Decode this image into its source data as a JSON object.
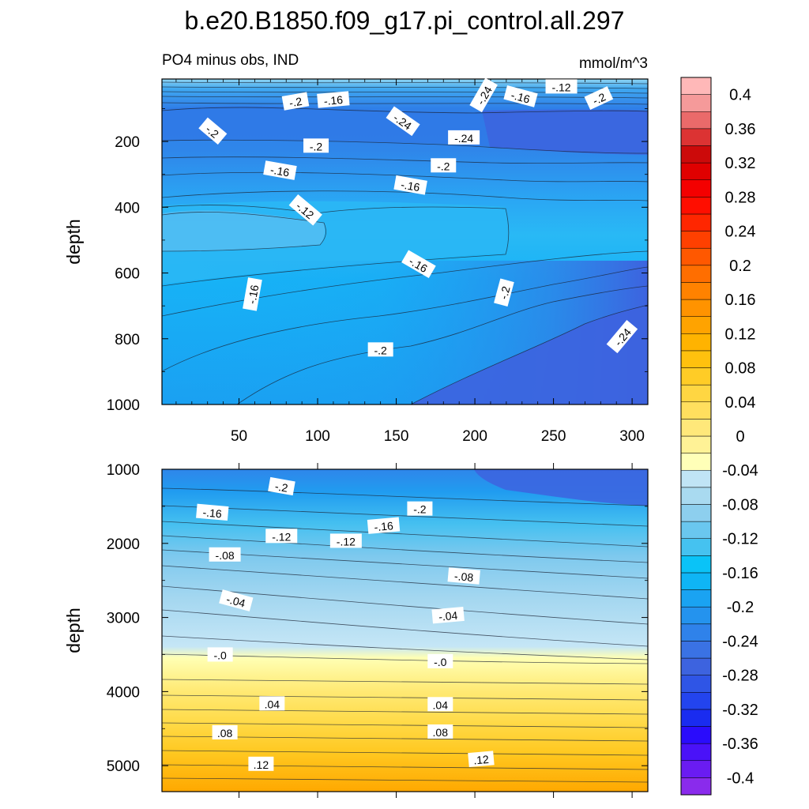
{
  "chart_data": {
    "type": "heatmap",
    "title": "b.e20.B1850.f09_g17.pi_control.all.297",
    "subtitle_left": "PO4 minus obs, IND",
    "subtitle_right": "mmol/m^3",
    "panels": [
      {
        "name": "upper",
        "ylabel": "depth",
        "xlim": [
          1,
          310
        ],
        "ylim": [
          10,
          1000
        ],
        "xticks": [
          "50",
          "100",
          "150",
          "200",
          "250",
          "300"
        ],
        "yticks": [
          "200",
          "400",
          "600",
          "800",
          "1000"
        ],
        "contour_labels": [
          {
            "text": "-.2",
            "x": 86,
            "y": 80,
            "rot": -10
          },
          {
            "text": "-.16",
            "x": 110,
            "y": 75,
            "rot": -5
          },
          {
            "text": "-.24",
            "x": 154,
            "y": 140,
            "rot": 35
          },
          {
            "text": "-.24",
            "x": 206,
            "y": 60,
            "rot": -60
          },
          {
            "text": "-.16",
            "x": 229,
            "y": 65,
            "rot": 15
          },
          {
            "text": "-.12",
            "x": 255,
            "y": 35,
            "rot": 0
          },
          {
            "text": "-.2",
            "x": 279,
            "y": 70,
            "rot": -25
          },
          {
            "text": "-.2",
            "x": 33,
            "y": 170,
            "rot": 40
          },
          {
            "text": "-.2",
            "x": 99,
            "y": 215,
            "rot": 0
          },
          {
            "text": "-.24",
            "x": 193,
            "y": 190,
            "rot": 0
          },
          {
            "text": "-.16",
            "x": 76,
            "y": 290,
            "rot": 10
          },
          {
            "text": "-.2",
            "x": 180,
            "y": 275,
            "rot": 0
          },
          {
            "text": "-.16",
            "x": 159,
            "y": 335,
            "rot": 10
          },
          {
            "text": "-.12",
            "x": 92,
            "y": 410,
            "rot": 40
          },
          {
            "text": "-.16",
            "x": 164,
            "y": 575,
            "rot": 30
          },
          {
            "text": "-.16",
            "x": 59,
            "y": 665,
            "rot": -80
          },
          {
            "text": "-.2",
            "x": 219,
            "y": 660,
            "rot": -75
          },
          {
            "text": "-.2",
            "x": 140,
            "y": 835,
            "rot": 0
          },
          {
            "text": "-.24",
            "x": 294,
            "y": 795,
            "rot": -50
          }
        ]
      },
      {
        "name": "lower",
        "ylabel": "depth",
        "ylim": [
          1000,
          5350
        ],
        "yticks": [
          "1000",
          "2000",
          "3000",
          "4000",
          "5000"
        ],
        "contour_labels": [
          {
            "text": "-.2",
            "x": 77,
            "y": 1240,
            "rot": 10
          },
          {
            "text": "-.2",
            "x": 165,
            "y": 1540,
            "rot": 0
          },
          {
            "text": "-.16",
            "x": 33,
            "y": 1590,
            "rot": 5
          },
          {
            "text": "-.16",
            "x": 142,
            "y": 1770,
            "rot": -5
          },
          {
            "text": "-.12",
            "x": 77,
            "y": 1910,
            "rot": 0
          },
          {
            "text": "-.12",
            "x": 118,
            "y": 1975,
            "rot": 0
          },
          {
            "text": "-.08",
            "x": 41,
            "y": 2160,
            "rot": 0
          },
          {
            "text": "-.08",
            "x": 193,
            "y": 2450,
            "rot": 5
          },
          {
            "text": "-.04",
            "x": 48,
            "y": 2780,
            "rot": 15
          },
          {
            "text": "-.04",
            "x": 183,
            "y": 2980,
            "rot": -5
          },
          {
            "text": "-.0",
            "x": 38,
            "y": 3510,
            "rot": 0
          },
          {
            "text": "-.0",
            "x": 178,
            "y": 3600,
            "rot": 0
          },
          {
            "text": ".04",
            "x": 71,
            "y": 4170,
            "rot": 0
          },
          {
            "text": ".04",
            "x": 178,
            "y": 4180,
            "rot": 0
          },
          {
            "text": ".08",
            "x": 41,
            "y": 4560,
            "rot": 0
          },
          {
            "text": ".08",
            "x": 178,
            "y": 4550,
            "rot": 0
          },
          {
            "text": ".12",
            "x": 64,
            "y": 4985,
            "rot": 0
          },
          {
            "text": ".12",
            "x": 204,
            "y": 4920,
            "rot": -5
          }
        ]
      }
    ],
    "colorbar": {
      "levels": [
        -0.42,
        -0.4,
        -0.38,
        -0.36,
        -0.34,
        -0.32,
        -0.3,
        -0.28,
        -0.26,
        -0.24,
        -0.22,
        -0.2,
        -0.18,
        -0.16,
        -0.14,
        -0.12,
        -0.1,
        -0.08,
        -0.06,
        -0.04,
        -0.02,
        0,
        0.02,
        0.04,
        0.06,
        0.08,
        0.1,
        0.12,
        0.14,
        0.16,
        0.18,
        0.2,
        0.22,
        0.24,
        0.26,
        0.28,
        0.3,
        0.32,
        0.34,
        0.36,
        0.38,
        0.4,
        0.42
      ],
      "tick_labels": [
        "-0.4",
        "-0.36",
        "-0.32",
        "-0.28",
        "-0.24",
        "-0.2",
        "-0.16",
        "-0.12",
        "-0.08",
        "-0.04",
        "0",
        "0.04",
        "0.08",
        "0.12",
        "0.16",
        "0.2",
        "0.24",
        "0.28",
        "0.32",
        "0.36",
        "0.4"
      ],
      "tick_values": [
        -0.4,
        -0.36,
        -0.32,
        -0.28,
        -0.24,
        -0.2,
        -0.16,
        -0.12,
        -0.08,
        -0.04,
        0,
        0.04,
        0.08,
        0.12,
        0.16,
        0.2,
        0.24,
        0.28,
        0.32,
        0.36,
        0.4
      ],
      "colors": [
        "#8a2bec",
        "#6a1cf2",
        "#4a12f8",
        "#2a0cfc",
        "#1a2cf0",
        "#2344ee",
        "#2f55e6",
        "#3d63df",
        "#3a72e4",
        "#2f82ea",
        "#2493ee",
        "#1aa3f2",
        "#0fb5f5",
        "#0ac3f7",
        "#45c2f0",
        "#6ac7ef",
        "#8dcfee",
        "#a9daf0",
        "#c0e4f5",
        "#ffffb8",
        "#fff296",
        "#ffe87a",
        "#ffdf5e",
        "#ffd642",
        "#ffcc26",
        "#ffc10e",
        "#ffb300",
        "#ffa300",
        "#ff9300",
        "#ff8200",
        "#ff6e00",
        "#ff5800",
        "#ff4000",
        "#ff2600",
        "#ff0e00",
        "#f40000",
        "#e00000",
        "#cc0a0a",
        "#dc3333",
        "#ea6a6a",
        "#f59a9a",
        "#ffb8b8"
      ]
    }
  }
}
